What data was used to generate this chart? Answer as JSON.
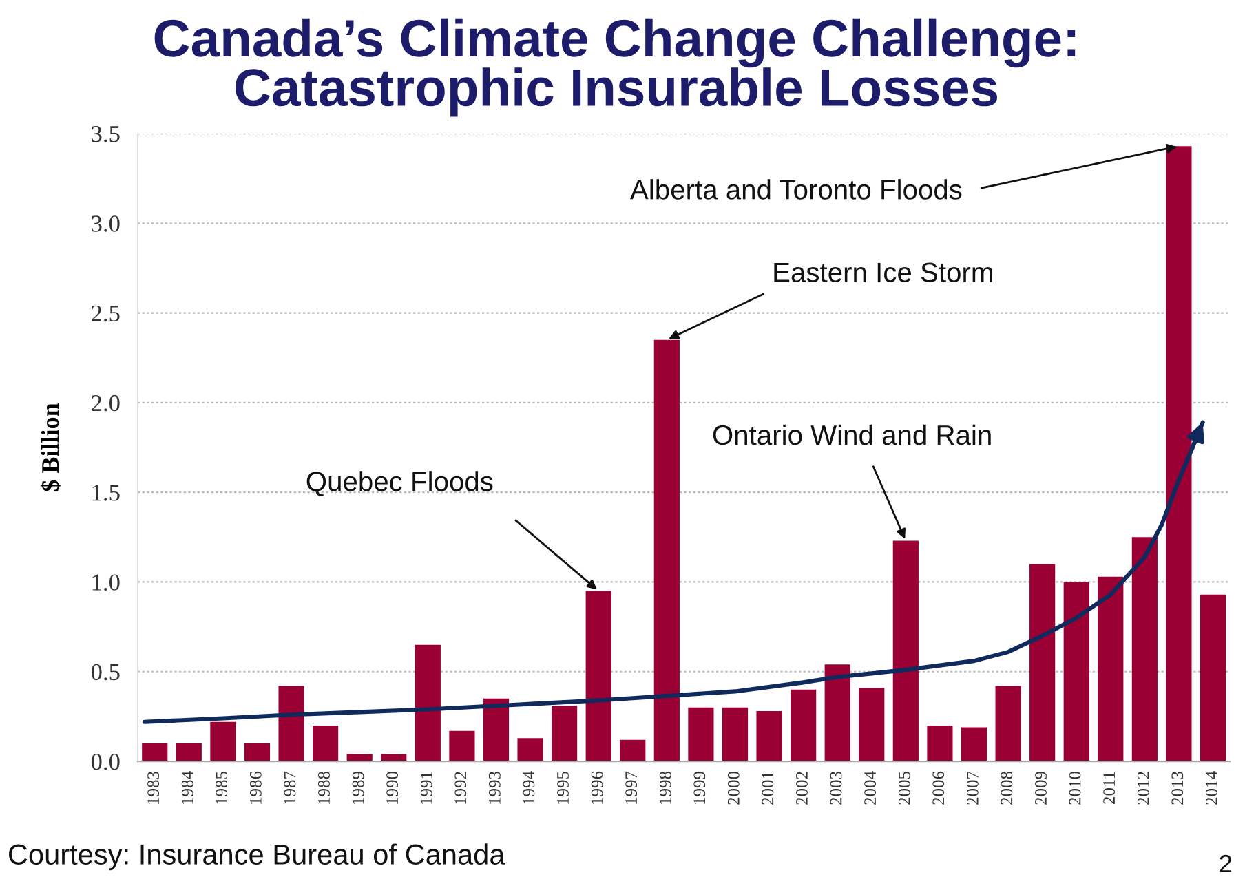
{
  "chart_data": {
    "type": "bar",
    "title": "Canada’s Climate Change Challenge:\nCatastrophic Insurable Losses",
    "ylabel": "$ Billion",
    "x": [
      1983,
      1984,
      1985,
      1986,
      1987,
      1988,
      1989,
      1990,
      1991,
      1992,
      1993,
      1994,
      1995,
      1996,
      1997,
      1998,
      1999,
      2000,
      2001,
      2002,
      2003,
      2004,
      2005,
      2006,
      2007,
      2008,
      2009,
      2010,
      2011,
      2012,
      2013,
      2014
    ],
    "xlim": [
      1982.5,
      2014.5
    ],
    "xticks": [
      1983,
      1984,
      1985,
      1986,
      1987,
      1988,
      1989,
      1990,
      1991,
      1992,
      1993,
      1994,
      1995,
      1996,
      1997,
      1998,
      1999,
      2000,
      2001,
      2002,
      2003,
      2004,
      2005,
      2006,
      2007,
      2008,
      2009,
      2010,
      2011,
      2012,
      2013,
      2014
    ],
    "ylim": [
      0,
      3.5
    ],
    "yticks": [
      {
        "value": 0,
        "label": "0.0"
      },
      {
        "value": 0.5,
        "label": "0.5"
      },
      {
        "value": 1,
        "label": "1.0"
      },
      {
        "value": 1.5,
        "label": "1.5"
      },
      {
        "value": 2,
        "label": "2.0"
      },
      {
        "value": 2.5,
        "label": "2.5"
      },
      {
        "value": 3,
        "label": "3.0"
      },
      {
        "value": 3.5,
        "label": "3.5"
      }
    ],
    "grid": "y",
    "series": [
      {
        "color": "#9b0034",
        "values": [
          0.1,
          0.1,
          0.22,
          0.1,
          0.42,
          0.2,
          0.04,
          0.04,
          0.65,
          0.17,
          0.35,
          0.13,
          0.31,
          0.95,
          0.12,
          2.35,
          0.3,
          0.3,
          0.28,
          0.4,
          0.54,
          0.41,
          1.23,
          0.2,
          0.19,
          0.42,
          1.1,
          1.0,
          1.03,
          1.25,
          3.43,
          0.93
        ]
      },
      {
        "type": "line",
        "color": "#0f2a5c",
        "x": [
          1982.7,
          1985,
          1987,
          1989,
          1991,
          1993,
          1996,
          1998,
          2000,
          2002,
          2003,
          2004,
          2005,
          2006,
          2007,
          2008,
          2009,
          2010,
          2011,
          2012,
          2012.5,
          2013,
          2013.4,
          2013.7
        ],
        "values": [
          0.22,
          0.24,
          0.26,
          0.275,
          0.29,
          0.31,
          0.34,
          0.365,
          0.39,
          0.44,
          0.47,
          0.49,
          0.51,
          0.535,
          0.56,
          0.61,
          0.7,
          0.8,
          0.93,
          1.14,
          1.32,
          1.57,
          1.75,
          1.89
        ]
      }
    ],
    "annotations": [
      {
        "text": "Quebec Floods",
        "x": 1996,
        "y": 0.95
      },
      {
        "text": "Eastern Ice Storm",
        "x": 1998,
        "y": 2.35
      },
      {
        "text": "Ontario Wind and Rain",
        "x": 2005,
        "y": 1.23
      },
      {
        "text": "Alberta and Toronto Floods",
        "x": 2013,
        "y": 3.43
      },
      "Courtesy: Insurance Bureau of Canada",
      "2"
    ]
  }
}
